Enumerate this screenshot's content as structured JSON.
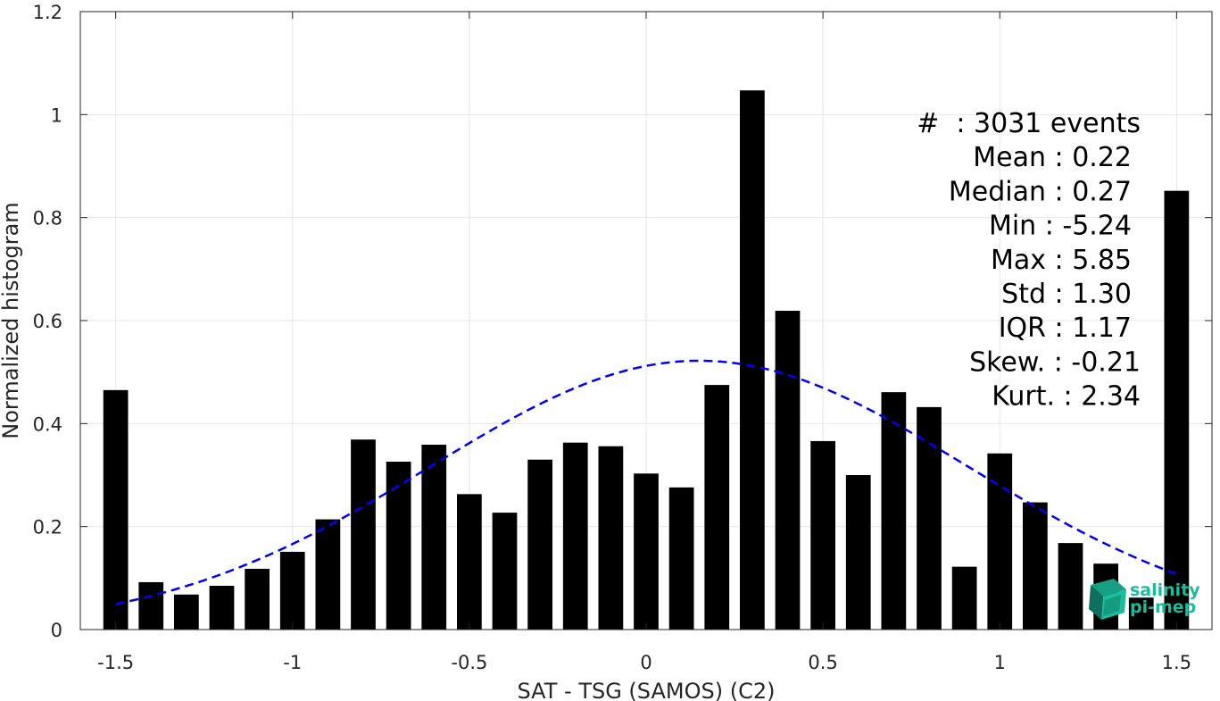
{
  "chart_data": {
    "type": "bar",
    "xlabel": "SAT - TSG (SAMOS) (C2)",
    "ylabel": "Normalized histogram",
    "xlim": [
      -1.6,
      1.6
    ],
    "ylim": [
      0,
      1.2
    ],
    "x_ticks": [
      -1.5,
      -1,
      -0.5,
      0,
      0.5,
      1,
      1.5
    ],
    "x_tick_labels": [
      "-1.5",
      "-1",
      "-0.5",
      "0",
      "0.5",
      "1",
      "1.5"
    ],
    "y_ticks": [
      0,
      0.2,
      0.4,
      0.6,
      0.8,
      1,
      1.2
    ],
    "y_tick_labels": [
      "0",
      "0.2",
      "0.4",
      "0.6",
      "0.8",
      "1",
      "1.2"
    ],
    "grid": true,
    "bar_width": 0.07,
    "bar_color": "#000000",
    "bars": {
      "x": [
        -1.5,
        -1.4,
        -1.3,
        -1.2,
        -1.1,
        -1.0,
        -0.9,
        -0.8,
        -0.7,
        -0.6,
        -0.5,
        -0.4,
        -0.3,
        -0.2,
        -0.1,
        0.0,
        0.1,
        0.2,
        0.3,
        0.4,
        0.5,
        0.6,
        0.7,
        0.8,
        0.9,
        1.0,
        1.1,
        1.2,
        1.3,
        1.4,
        1.5
      ],
      "values": [
        0.465,
        0.092,
        0.068,
        0.085,
        0.118,
        0.151,
        0.214,
        0.369,
        0.326,
        0.359,
        0.263,
        0.227,
        0.33,
        0.363,
        0.356,
        0.303,
        0.276,
        0.475,
        1.047,
        0.619,
        0.366,
        0.3,
        0.461,
        0.432,
        0.122,
        0.342,
        0.247,
        0.168,
        0.128,
        0.062,
        0.852
      ]
    },
    "fit_curve": {
      "style": "dashed",
      "color": "#0000ff",
      "mean": 0.15,
      "std": 0.76,
      "peak": 0.522,
      "x_range": [
        -1.5,
        1.5
      ]
    },
    "stats": [
      "#  : 3031 events",
      "Mean : 0.22",
      "Median : 0.27",
      "Min : -5.24",
      "Max : 5.85",
      "Std : 1.30",
      "IQR : 1.17",
      "Skew. : -0.21",
      "Kurt. : 2.34"
    ]
  },
  "logo": {
    "line1": "salinity",
    "line2": "pi-mep",
    "color": "#1abc9c"
  }
}
